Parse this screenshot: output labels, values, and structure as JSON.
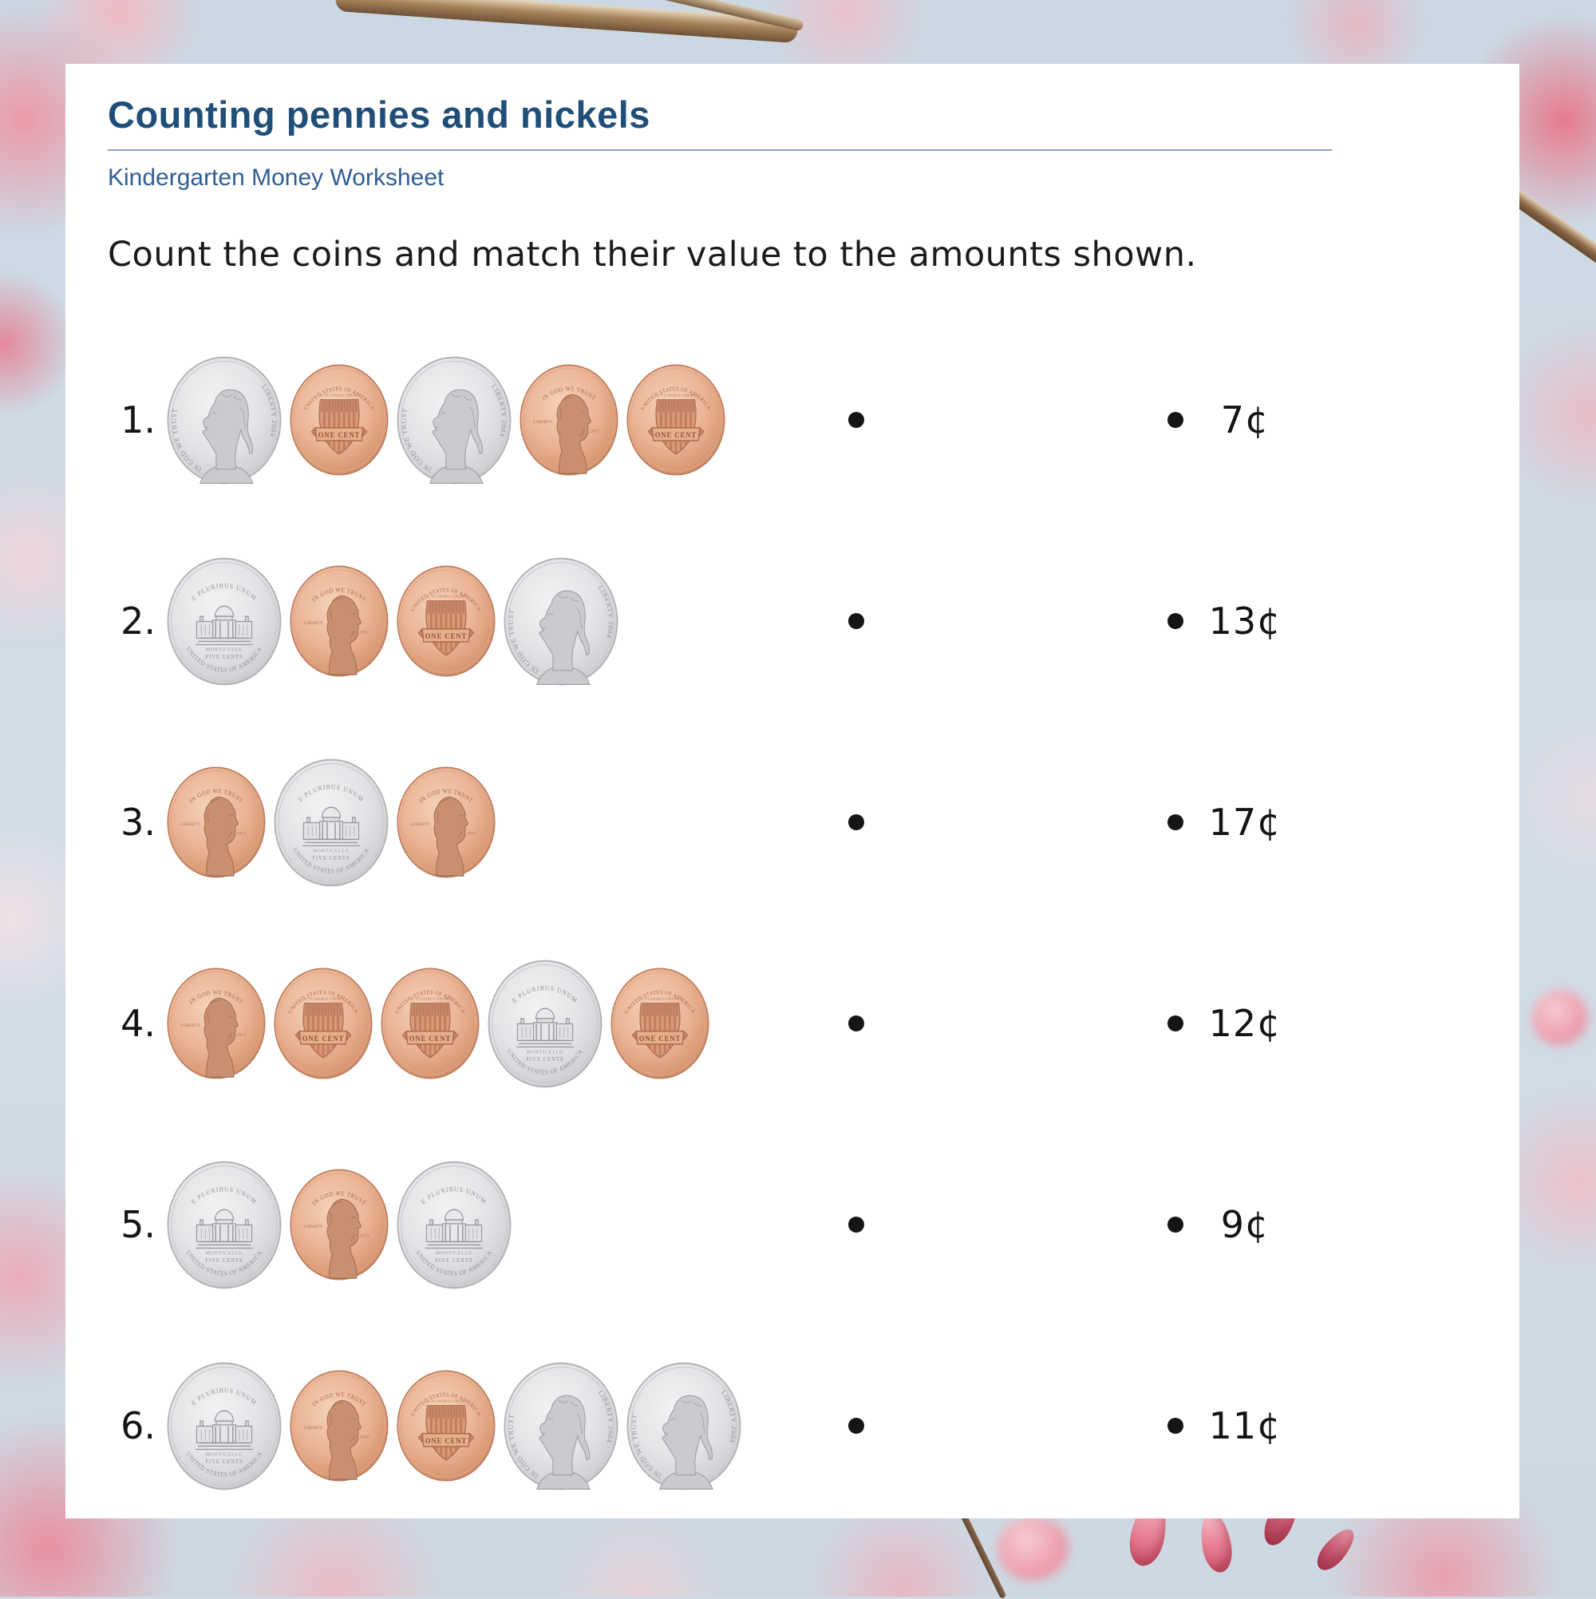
{
  "page": {
    "title": "Counting pennies and nickels",
    "subtitle": "Kindergarten Money Worksheet",
    "instruction": "Count the coins and match their value to the amounts shown."
  },
  "colors": {
    "title_blue": "#1F4E79",
    "subtitle_blue": "#2E5F94",
    "rule_blue": "#8AA4C4",
    "text": "#141414",
    "penny_copper": "#E9B392",
    "nickel_silver": "#E3E3E6",
    "background_sky": "#CFDAE4",
    "blossom_pink": "#EE96A5"
  },
  "coin_types": {
    "nickel_obverse": {
      "name": "nickel heads (Jefferson)",
      "value_cents": 5,
      "texts": {
        "left_arc": "IN GOD WE TRUST",
        "right_arc": "LIBERTY 2004"
      }
    },
    "nickel_reverse": {
      "name": "nickel tails (Monticello)",
      "value_cents": 5,
      "texts": {
        "top_arc": "E PLURIBUS UNUM",
        "building": "MONTICELLO",
        "value": "FIVE CENTS",
        "bottom_arc": "UNITED STATES OF AMERICA"
      }
    },
    "penny_obverse": {
      "name": "penny heads (Lincoln)",
      "value_cents": 1,
      "texts": {
        "top_arc": "IN GOD WE TRUST",
        "left": "LIBERTY",
        "date": "2013"
      }
    },
    "penny_reverse": {
      "name": "penny tails (Union shield)",
      "value_cents": 1,
      "texts": {
        "top_arc": "UNITED STATES OF AMERICA",
        "motto": "E PLURIBUS UNUM",
        "banner": "ONE CENT"
      }
    }
  },
  "rows": [
    {
      "number": "1.",
      "coins": [
        "nickel_obverse",
        "penny_reverse",
        "nickel_obverse",
        "penny_obverse",
        "penny_reverse"
      ],
      "amount": "7¢"
    },
    {
      "number": "2.",
      "coins": [
        "nickel_reverse",
        "penny_obverse",
        "penny_reverse",
        "nickel_obverse"
      ],
      "amount": "13¢"
    },
    {
      "number": "3.",
      "coins": [
        "penny_obverse",
        "nickel_reverse",
        "penny_obverse"
      ],
      "amount": "17¢"
    },
    {
      "number": "4.",
      "coins": [
        "penny_obverse",
        "penny_reverse",
        "penny_reverse",
        "nickel_reverse",
        "penny_reverse"
      ],
      "amount": "12¢"
    },
    {
      "number": "5.",
      "coins": [
        "nickel_reverse",
        "penny_obverse",
        "nickel_reverse"
      ],
      "amount": "9¢"
    },
    {
      "number": "6.",
      "coins": [
        "nickel_reverse",
        "penny_obverse",
        "penny_reverse",
        "nickel_obverse",
        "nickel_obverse"
      ],
      "amount": "11¢"
    }
  ]
}
